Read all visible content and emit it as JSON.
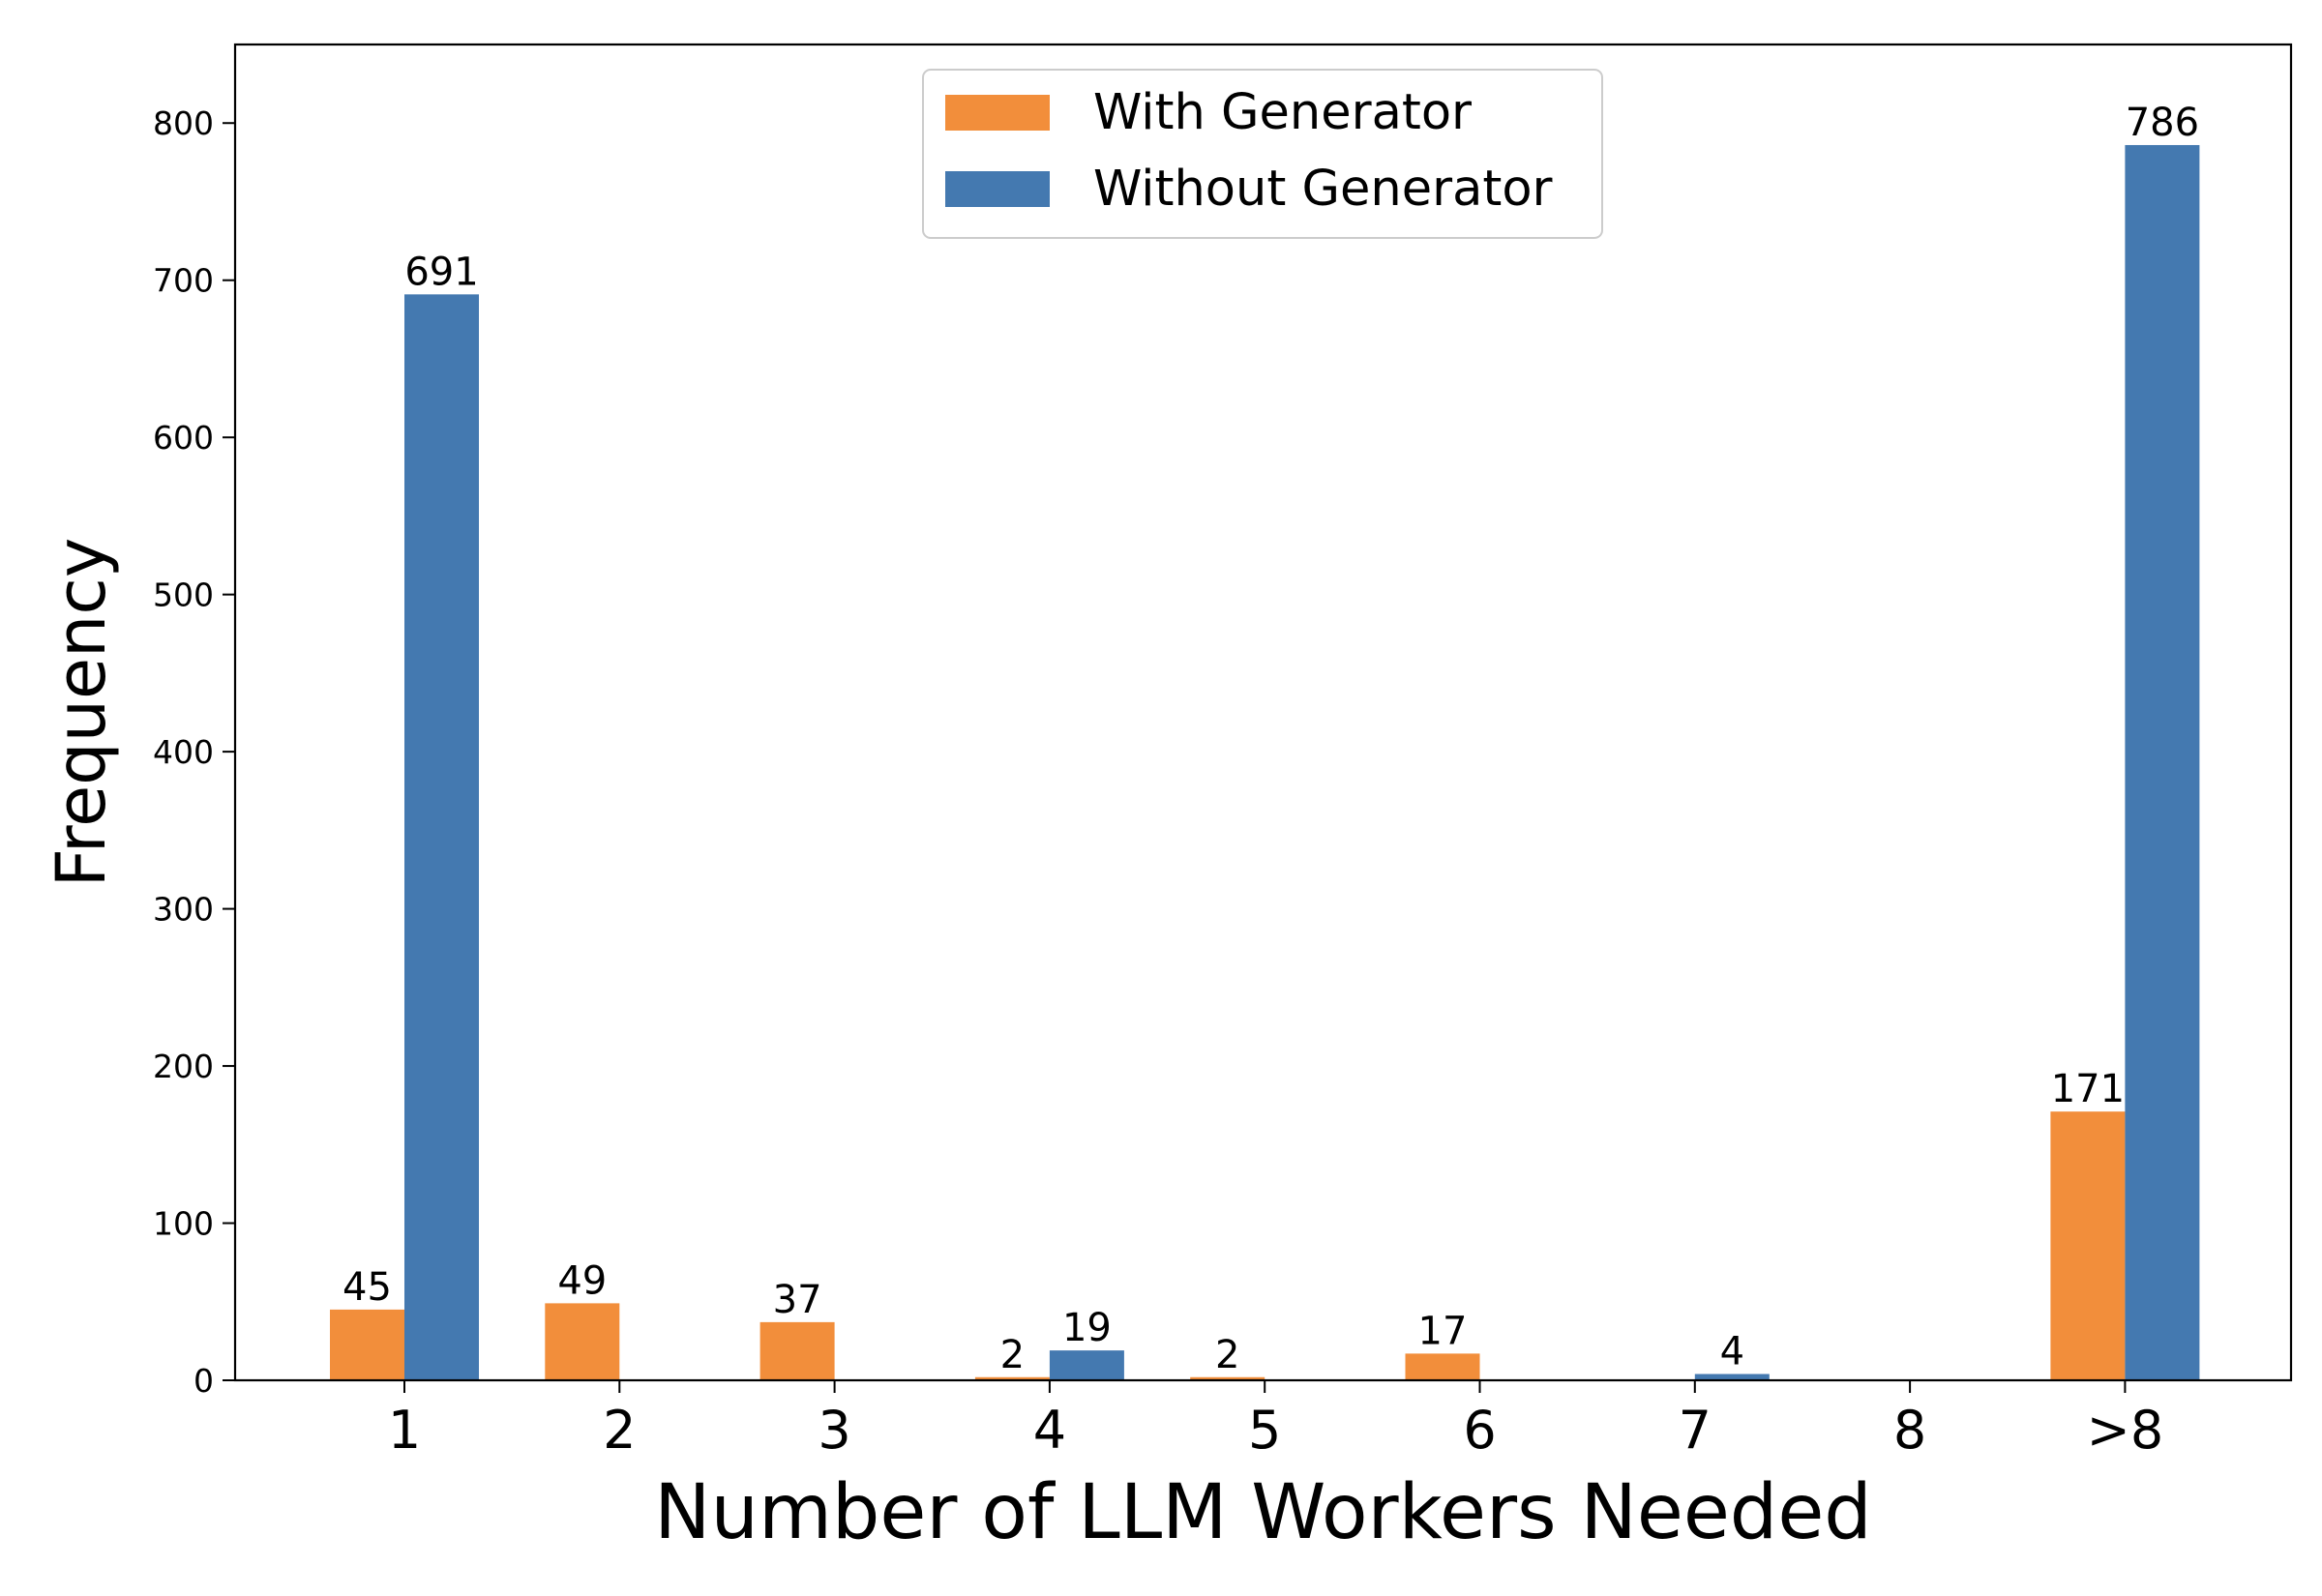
{
  "chart_data": {
    "type": "bar",
    "xlabel": "Number of LLM Workers Needed",
    "ylabel": "Frequency",
    "categories": [
      "1",
      "2",
      "3",
      "4",
      "5",
      "6",
      "7",
      "8",
      ">8"
    ],
    "series": [
      {
        "name": "With Generator",
        "color": "#f28e3b",
        "values": [
          45,
          49,
          37,
          2,
          2,
          17,
          0,
          0,
          171
        ],
        "labels": [
          "45",
          "49",
          "37",
          "2",
          "2",
          "17",
          "",
          "",
          "171"
        ]
      },
      {
        "name": "Without Generator",
        "color": "#4479b0",
        "values": [
          691,
          0,
          0,
          19,
          0,
          0,
          4,
          0,
          786
        ],
        "labels": [
          "691",
          "",
          "",
          "19",
          "",
          "",
          "4",
          "",
          "786"
        ]
      }
    ],
    "ylim": [
      0,
      850
    ],
    "yticks": [
      0,
      100,
      200,
      300,
      400,
      500,
      600,
      700,
      800
    ],
    "grid": false,
    "legend_position": "top-center"
  }
}
